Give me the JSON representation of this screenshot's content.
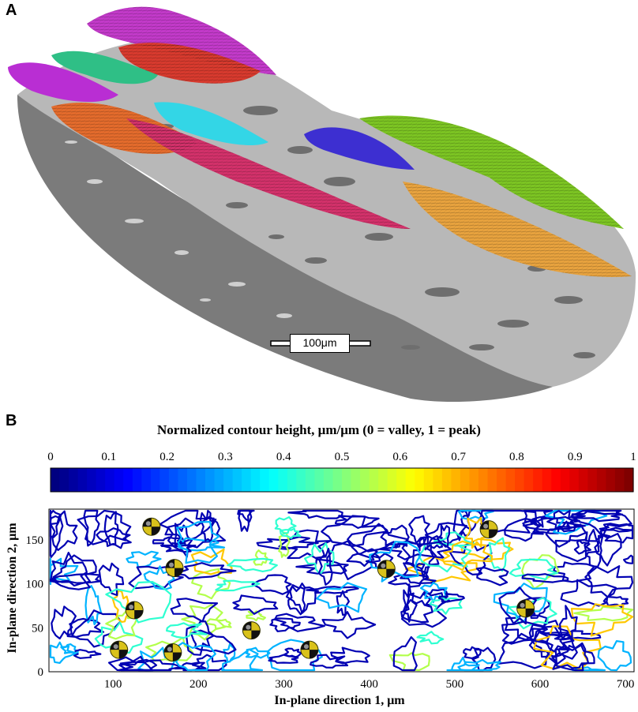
{
  "panel_a": {
    "label": "A",
    "scale_bar": "100μm"
  },
  "panel_b": {
    "label": "B",
    "colorbar": {
      "title": "Normalized contour height, μm/μm (0 = valley, 1 = peak)",
      "ticks": [
        "0",
        "0.1",
        "0.2",
        "0.3",
        "0.4",
        "0.5",
        "0.6",
        "0.7",
        "0.8",
        "0.9",
        "1"
      ],
      "colormap": "jet"
    },
    "plot": {
      "xlabel": "In-plane direction 1, μm",
      "ylabel": "In-plane direction 2, μm",
      "xticks": [
        "100",
        "200",
        "300",
        "400",
        "500",
        "600",
        "700"
      ],
      "yticks": [
        "0",
        "50",
        "100",
        "150"
      ],
      "xlim": [
        25,
        710
      ],
      "ylim": [
        0,
        185
      ],
      "markers": [
        {
          "x": 145,
          "y": 165
        },
        {
          "x": 172,
          "y": 118
        },
        {
          "x": 125,
          "y": 70
        },
        {
          "x": 107,
          "y": 25
        },
        {
          "x": 170,
          "y": 22
        },
        {
          "x": 262,
          "y": 47
        },
        {
          "x": 330,
          "y": 25
        },
        {
          "x": 420,
          "y": 117
        },
        {
          "x": 540,
          "y": 162
        },
        {
          "x": 583,
          "y": 72
        }
      ]
    }
  }
}
